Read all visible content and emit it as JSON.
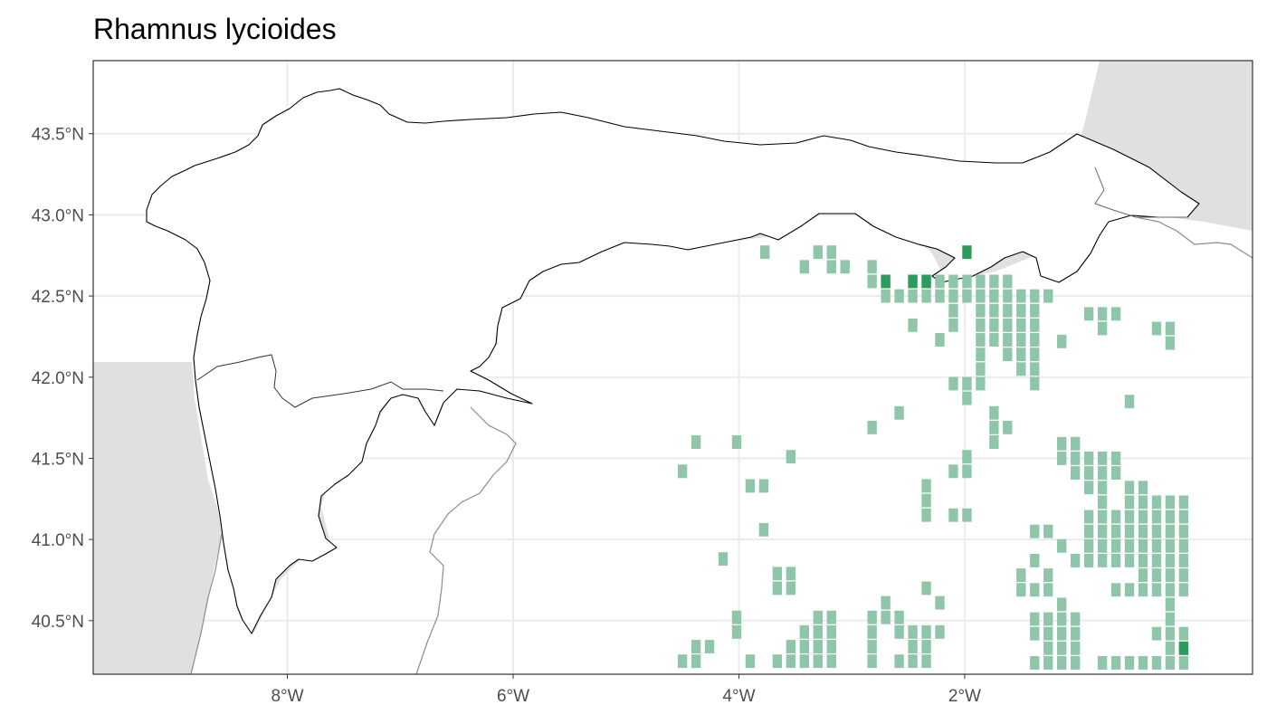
{
  "title": "Rhamnus lycioides",
  "axes": {
    "x_ticks": [
      "8°W",
      "6°W",
      "4°W",
      "2°W"
    ],
    "y_ticks": [
      "43.5°N",
      "43.0°N",
      "42.5°N",
      "42.0°N",
      "41.5°N",
      "41.0°N",
      "40.5°N"
    ]
  },
  "map": {
    "lon_range": [
      -9.72,
      0.55
    ],
    "lat_range": [
      40.17,
      43.95
    ],
    "land_color": "#e0e0e0",
    "region_color": "#ffffff",
    "grid": true,
    "grid_color": "#ebebeb",
    "cell_color_light": "#8fc5a8",
    "cell_color_dark": "#2a9d5c",
    "cell_size_deg": 0.083
  },
  "chart_data": {
    "type": "scatter",
    "title": "Rhamnus lycioides",
    "xlabel": "",
    "ylabel": "",
    "xlim": [
      -9.72,
      0.55
    ],
    "ylim": [
      40.17,
      43.95
    ],
    "series": [
      {
        "values": [
          [
            -3.77,
            42.77
          ],
          [
            -3.3,
            42.77
          ],
          [
            -3.18,
            42.77
          ],
          [
            -3.42,
            42.68
          ],
          [
            -3.18,
            42.68
          ],
          [
            -3.06,
            42.68
          ],
          [
            -2.82,
            42.68
          ],
          [
            -2.82,
            42.59
          ],
          [
            -2.7,
            42.59
          ],
          [
            -2.46,
            42.59
          ],
          [
            -2.34,
            42.59
          ],
          [
            -2.22,
            42.59
          ],
          [
            -2.1,
            42.59
          ],
          [
            -1.98,
            42.59
          ],
          [
            -1.86,
            42.59
          ],
          [
            -1.74,
            42.59
          ],
          [
            -1.62,
            42.59
          ],
          [
            -2.7,
            42.5
          ],
          [
            -2.58,
            42.5
          ],
          [
            -2.46,
            42.5
          ],
          [
            -2.34,
            42.5
          ],
          [
            -2.22,
            42.5
          ],
          [
            -2.1,
            42.5
          ],
          [
            -1.98,
            42.5
          ],
          [
            -1.86,
            42.5
          ],
          [
            -1.74,
            42.5
          ],
          [
            -1.62,
            42.5
          ],
          [
            -1.5,
            42.5
          ],
          [
            -1.38,
            42.5
          ],
          [
            -1.26,
            42.5
          ],
          [
            -2.1,
            42.41
          ],
          [
            -1.86,
            42.41
          ],
          [
            -1.74,
            42.41
          ],
          [
            -1.62,
            42.41
          ],
          [
            -1.5,
            42.41
          ],
          [
            -1.38,
            42.41
          ],
          [
            -0.9,
            42.39
          ],
          [
            -0.78,
            42.39
          ],
          [
            -0.66,
            42.39
          ],
          [
            -2.46,
            42.32
          ],
          [
            -2.1,
            42.32
          ],
          [
            -1.86,
            42.32
          ],
          [
            -1.74,
            42.32
          ],
          [
            -1.62,
            42.32
          ],
          [
            -1.5,
            42.32
          ],
          [
            -1.38,
            42.32
          ],
          [
            -0.78,
            42.3
          ],
          [
            -0.3,
            42.3
          ],
          [
            -0.18,
            42.3
          ],
          [
            -2.22,
            42.23
          ],
          [
            -1.86,
            42.23
          ],
          [
            -1.74,
            42.23
          ],
          [
            -1.62,
            42.23
          ],
          [
            -1.5,
            42.23
          ],
          [
            -1.38,
            42.23
          ],
          [
            -1.14,
            42.22
          ],
          [
            -0.18,
            42.21
          ],
          [
            -1.86,
            42.14
          ],
          [
            -1.62,
            42.14
          ],
          [
            -1.5,
            42.14
          ],
          [
            -1.38,
            42.14
          ],
          [
            -1.86,
            42.05
          ],
          [
            -1.5,
            42.05
          ],
          [
            -1.38,
            42.05
          ],
          [
            -2.1,
            41.96
          ],
          [
            -1.98,
            41.96
          ],
          [
            -1.86,
            41.96
          ],
          [
            -1.38,
            41.96
          ],
          [
            -1.98,
            41.87
          ],
          [
            -0.54,
            41.85
          ],
          [
            -2.58,
            41.78
          ],
          [
            -1.74,
            41.78
          ],
          [
            -2.82,
            41.69
          ],
          [
            -1.74,
            41.69
          ],
          [
            -1.62,
            41.69
          ],
          [
            -1.74,
            41.6
          ],
          [
            -4.38,
            41.6
          ],
          [
            -4.02,
            41.6
          ],
          [
            -1.14,
            41.59
          ],
          [
            -1.02,
            41.59
          ],
          [
            -3.54,
            41.51
          ],
          [
            -1.98,
            41.51
          ],
          [
            -1.14,
            41.5
          ],
          [
            -1.02,
            41.5
          ],
          [
            -0.9,
            41.5
          ],
          [
            -0.78,
            41.5
          ],
          [
            -0.66,
            41.5
          ],
          [
            -4.5,
            41.42
          ],
          [
            -2.1,
            41.42
          ],
          [
            -1.98,
            41.42
          ],
          [
            -1.02,
            41.41
          ],
          [
            -0.9,
            41.41
          ],
          [
            -0.78,
            41.41
          ],
          [
            -0.66,
            41.41
          ],
          [
            -3.9,
            41.33
          ],
          [
            -3.78,
            41.33
          ],
          [
            -2.34,
            41.33
          ],
          [
            -0.9,
            41.32
          ],
          [
            -0.78,
            41.32
          ],
          [
            -0.54,
            41.32
          ],
          [
            -0.42,
            41.32
          ],
          [
            -2.34,
            41.24
          ],
          [
            -0.78,
            41.23
          ],
          [
            -0.54,
            41.23
          ],
          [
            -0.42,
            41.23
          ],
          [
            -0.3,
            41.23
          ],
          [
            -0.18,
            41.23
          ],
          [
            -0.06,
            41.23
          ],
          [
            -2.34,
            41.15
          ],
          [
            -2.1,
            41.15
          ],
          [
            -1.98,
            41.15
          ],
          [
            -0.9,
            41.14
          ],
          [
            -0.78,
            41.14
          ],
          [
            -0.66,
            41.14
          ],
          [
            -0.54,
            41.14
          ],
          [
            -0.42,
            41.14
          ],
          [
            -0.3,
            41.14
          ],
          [
            -0.18,
            41.14
          ],
          [
            -0.06,
            41.14
          ],
          [
            -3.78,
            41.06
          ],
          [
            -1.38,
            41.05
          ],
          [
            -1.26,
            41.05
          ],
          [
            -0.9,
            41.05
          ],
          [
            -0.78,
            41.05
          ],
          [
            -0.66,
            41.05
          ],
          [
            -0.54,
            41.05
          ],
          [
            -0.42,
            41.05
          ],
          [
            -0.3,
            41.05
          ],
          [
            -0.18,
            41.05
          ],
          [
            -0.06,
            41.05
          ],
          [
            -1.14,
            40.96
          ],
          [
            -0.9,
            40.96
          ],
          [
            -0.78,
            40.96
          ],
          [
            -0.66,
            40.96
          ],
          [
            -0.54,
            40.96
          ],
          [
            -0.42,
            40.96
          ],
          [
            -0.3,
            40.96
          ],
          [
            -0.18,
            40.96
          ],
          [
            -0.06,
            40.96
          ],
          [
            -4.14,
            40.88
          ],
          [
            -1.38,
            40.87
          ],
          [
            -1.02,
            40.87
          ],
          [
            -0.9,
            40.87
          ],
          [
            -0.78,
            40.87
          ],
          [
            -0.66,
            40.87
          ],
          [
            -0.54,
            40.87
          ],
          [
            -0.42,
            40.87
          ],
          [
            -0.3,
            40.87
          ],
          [
            -0.18,
            40.87
          ],
          [
            -0.06,
            40.87
          ],
          [
            -3.66,
            40.79
          ],
          [
            -3.54,
            40.79
          ],
          [
            -1.5,
            40.78
          ],
          [
            -1.26,
            40.78
          ],
          [
            -0.42,
            40.78
          ],
          [
            -0.3,
            40.78
          ],
          [
            -0.18,
            40.78
          ],
          [
            -0.06,
            40.78
          ],
          [
            -3.66,
            40.7
          ],
          [
            -3.54,
            40.7
          ],
          [
            -2.34,
            40.7
          ],
          [
            -1.5,
            40.69
          ],
          [
            -1.38,
            40.69
          ],
          [
            -1.26,
            40.69
          ],
          [
            -0.66,
            40.69
          ],
          [
            -0.54,
            40.69
          ],
          [
            -0.42,
            40.69
          ],
          [
            -0.3,
            40.69
          ],
          [
            -0.18,
            40.69
          ],
          [
            -0.06,
            40.69
          ],
          [
            -2.7,
            40.61
          ],
          [
            -2.22,
            40.61
          ],
          [
            -1.14,
            40.6
          ],
          [
            -0.18,
            40.6
          ],
          [
            -4.02,
            40.52
          ],
          [
            -3.3,
            40.52
          ],
          [
            -3.18,
            40.52
          ],
          [
            -2.82,
            40.52
          ],
          [
            -2.7,
            40.52
          ],
          [
            -2.58,
            40.52
          ],
          [
            -1.38,
            40.51
          ],
          [
            -1.26,
            40.51
          ],
          [
            -1.14,
            40.51
          ],
          [
            -1.02,
            40.51
          ],
          [
            -0.18,
            40.51
          ],
          [
            -4.02,
            40.43
          ],
          [
            -3.42,
            40.43
          ],
          [
            -3.3,
            40.43
          ],
          [
            -3.18,
            40.43
          ],
          [
            -2.82,
            40.43
          ],
          [
            -2.58,
            40.43
          ],
          [
            -2.46,
            40.43
          ],
          [
            -2.34,
            40.43
          ],
          [
            -2.22,
            40.43
          ],
          [
            -1.38,
            40.42
          ],
          [
            -1.26,
            40.42
          ],
          [
            -1.14,
            40.42
          ],
          [
            -1.02,
            40.42
          ],
          [
            -0.3,
            40.42
          ],
          [
            -0.18,
            40.42
          ],
          [
            -0.06,
            40.42
          ],
          [
            -4.38,
            40.34
          ],
          [
            -4.26,
            40.34
          ],
          [
            -3.54,
            40.34
          ],
          [
            -3.42,
            40.34
          ],
          [
            -3.3,
            40.34
          ],
          [
            -3.18,
            40.34
          ],
          [
            -2.82,
            40.34
          ],
          [
            -2.46,
            40.34
          ],
          [
            -2.34,
            40.34
          ],
          [
            -1.26,
            40.33
          ],
          [
            -1.14,
            40.33
          ],
          [
            -1.02,
            40.33
          ],
          [
            -0.18,
            40.33
          ],
          [
            -0.06,
            40.33
          ],
          [
            -4.5,
            40.25
          ],
          [
            -4.38,
            40.25
          ],
          [
            -3.9,
            40.25
          ],
          [
            -3.66,
            40.25
          ],
          [
            -3.54,
            40.25
          ],
          [
            -3.42,
            40.25
          ],
          [
            -3.3,
            40.25
          ],
          [
            -3.18,
            40.25
          ],
          [
            -2.82,
            40.25
          ],
          [
            -2.58,
            40.25
          ],
          [
            -2.46,
            40.25
          ],
          [
            -2.34,
            40.25
          ],
          [
            -1.38,
            40.24
          ],
          [
            -1.26,
            40.24
          ],
          [
            -1.14,
            40.24
          ],
          [
            -1.02,
            40.24
          ],
          [
            -0.78,
            40.24
          ],
          [
            -0.66,
            40.24
          ],
          [
            -0.54,
            40.24
          ],
          [
            -0.42,
            40.24
          ],
          [
            -0.3,
            40.24
          ],
          [
            -0.18,
            40.24
          ],
          [
            -0.06,
            40.24
          ]
        ]
      },
      {
        "values": [
          [
            -1.98,
            42.77
          ],
          [
            -2.7,
            42.59
          ],
          [
            -2.46,
            42.59
          ],
          [
            -2.34,
            42.59
          ],
          [
            -0.06,
            40.33
          ]
        ]
      }
    ]
  }
}
